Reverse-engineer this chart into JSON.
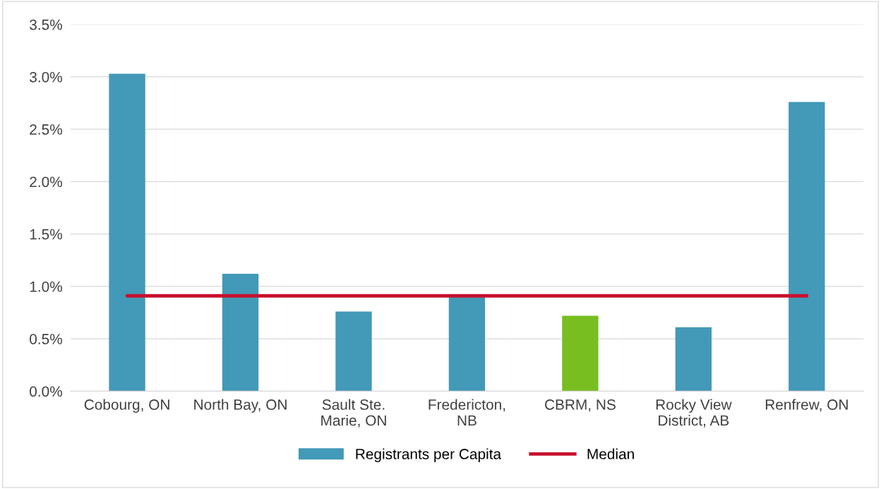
{
  "chart_data": {
    "type": "bar",
    "categories": [
      "Cobourg, ON",
      "North Bay, ON",
      "Sault Ste.\nMarie, ON",
      "Fredericton,\nNB",
      "CBRM, NS",
      "Rocky View\nDistrict, AB",
      "Renfrew, ON"
    ],
    "series": [
      {
        "name": "Registrants per Capita",
        "color": "#4399b8",
        "colors": [
          "#4399b8",
          "#4399b8",
          "#4399b8",
          "#4399b8",
          "#78be21",
          "#4399b8",
          "#4399b8"
        ],
        "values": [
          3.03,
          1.12,
          0.76,
          0.9,
          0.72,
          0.61,
          2.76
        ]
      },
      {
        "name": "Median",
        "type": "line",
        "color": "#c8102e",
        "values": [
          0.91,
          0.91,
          0.91,
          0.91,
          0.91,
          0.91,
          0.91
        ]
      }
    ],
    "ylim": [
      0,
      3.5
    ],
    "yticks": [
      {
        "value": 0,
        "label": "0.0%"
      },
      {
        "value": 0.5,
        "label": "0.5%"
      },
      {
        "value": 1,
        "label": "1.0%"
      },
      {
        "value": 1.5,
        "label": "1.5%"
      },
      {
        "value": 2,
        "label": "2.0%"
      },
      {
        "value": 2.5,
        "label": "2.5%"
      },
      {
        "value": 3,
        "label": "3.0%"
      },
      {
        "value": 3.5,
        "label": "3.5%"
      }
    ],
    "grid": "y",
    "legend": "bottom"
  }
}
